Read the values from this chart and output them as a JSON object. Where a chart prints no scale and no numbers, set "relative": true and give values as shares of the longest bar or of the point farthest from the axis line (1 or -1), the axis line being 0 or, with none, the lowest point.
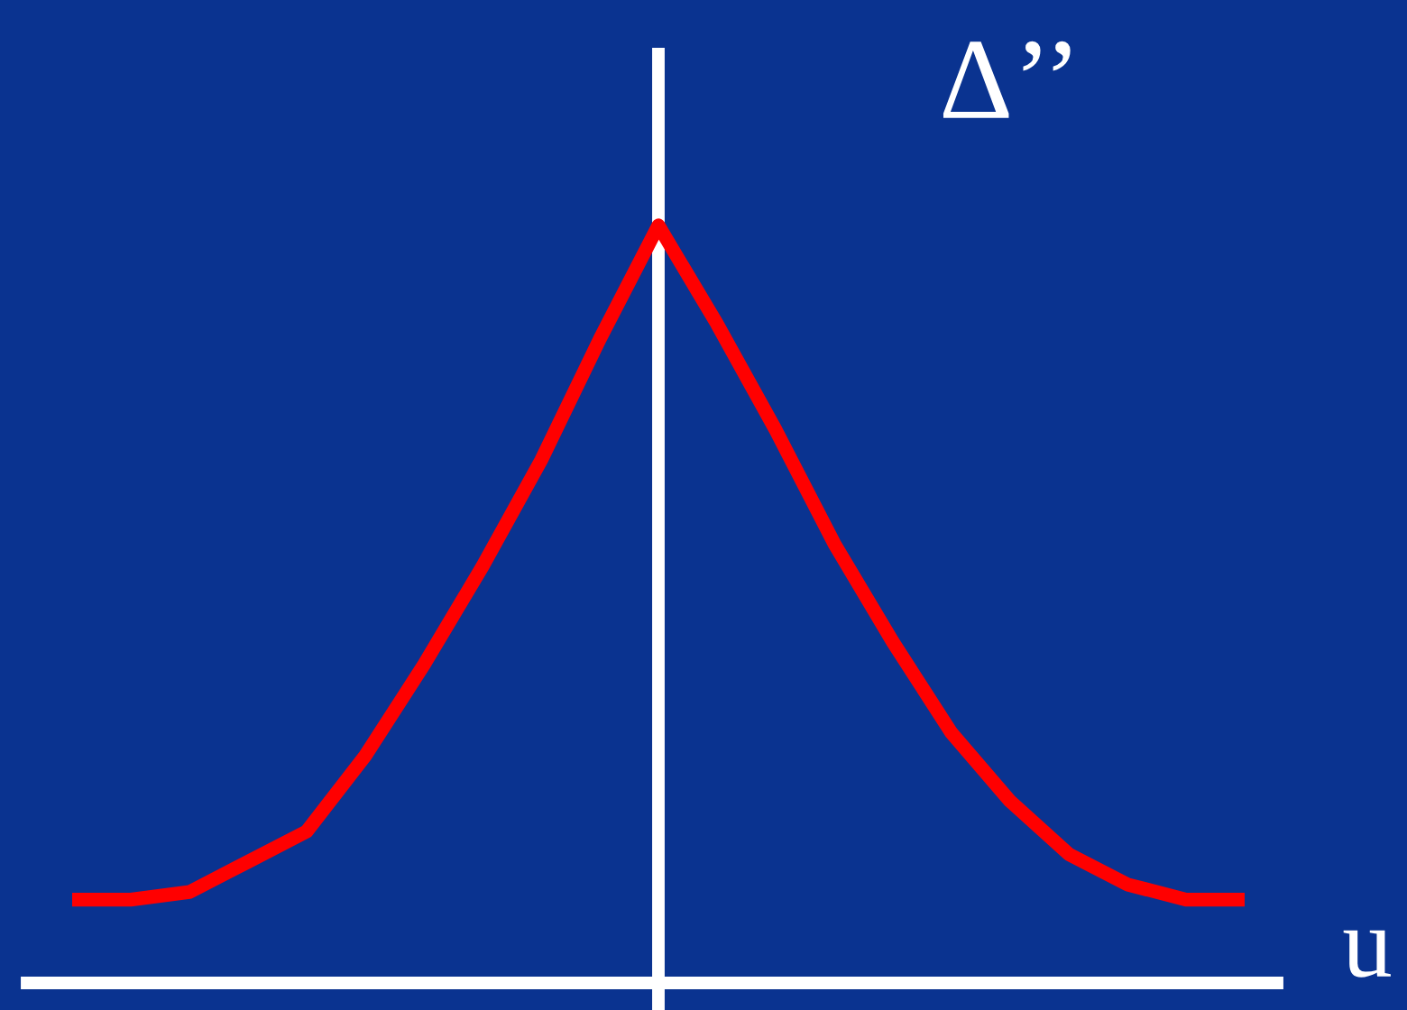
{
  "chart_data": {
    "type": "line",
    "relative": true,
    "xlabel": "u",
    "ylabel": "Δ’’",
    "categories": [
      null,
      null,
      null,
      null,
      null,
      null,
      null,
      null,
      null,
      null,
      null,
      null,
      null,
      null,
      null,
      null,
      null,
      null,
      null,
      null,
      null
    ],
    "series": [
      {
        "color": "#ff0000",
        "values": [
          0.11,
          0.11,
          0.12,
          0.16,
          0.2,
          0.3,
          0.42,
          0.55,
          0.69,
          0.85,
          1,
          0.87,
          0.73,
          0.58,
          0.45,
          0.33,
          0.24,
          0.17,
          0.13,
          0.11,
          0.11
        ]
      }
    ],
    "marker": "none",
    "line_style": "solid"
  }
}
